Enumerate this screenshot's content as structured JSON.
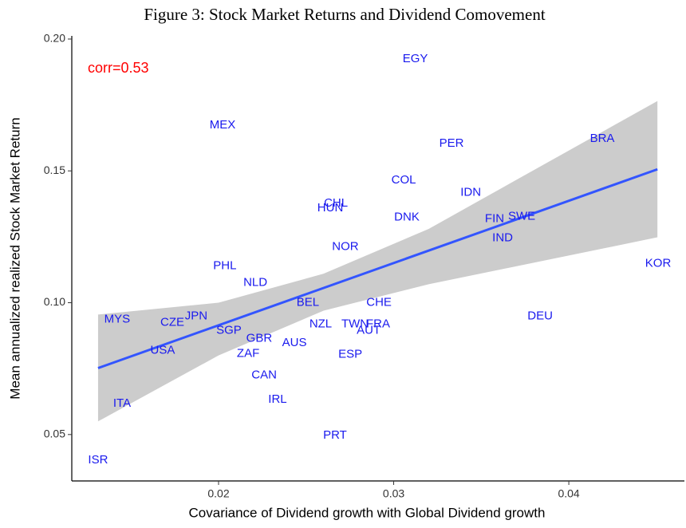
{
  "chart_data": {
    "type": "scatter",
    "title": "Figure 3: Stock Market Returns and Dividend Comovement",
    "x_label": "Covariance of Dividend growth with Global Dividend growth",
    "y_label": "Mean annualized realized Stock Market Return",
    "annotation": "corr=0.53",
    "annotation_color": "#ff0000",
    "color": "#1a1aee",
    "labels": [
      "EGY",
      "MEX",
      "BRA",
      "PER",
      "COL",
      "IDN",
      "CHL",
      "HUN",
      "DNK",
      "FIN",
      "SWE",
      "IND",
      "NOR",
      "KOR",
      "PHL",
      "NLD",
      "BEL",
      "CHE",
      "DEU",
      "MYS",
      "JPN",
      "CZE",
      "NZL",
      "TWN",
      "FRA",
      "AUT",
      "SGP",
      "GBR",
      "AUS",
      "USA",
      "ZAF",
      "ESP",
      "CAN",
      "IRL",
      "ITA",
      "PRT",
      "ISR"
    ],
    "x": [
      0.03123,
      0.02023,
      0.04191,
      0.0333,
      0.03057,
      0.0344,
      0.0267,
      0.02638,
      0.03075,
      0.03576,
      0.03731,
      0.03622,
      0.02724,
      0.0451,
      0.02036,
      0.0221,
      0.0251,
      0.02916,
      0.03836,
      0.01421,
      0.01872,
      0.01736,
      0.02583,
      0.02779,
      0.02911,
      0.02857,
      0.02059,
      0.02232,
      0.02433,
      0.01681,
      0.02169,
      0.02752,
      0.0226,
      0.02337,
      0.01449,
      0.02665,
      0.01312
    ],
    "values": [
      0.1924,
      0.1673,
      0.1621,
      0.1603,
      0.1464,
      0.1418,
      0.1376,
      0.1358,
      0.1324,
      0.1318,
      0.1327,
      0.1245,
      0.1212,
      0.1148,
      0.1139,
      0.1076,
      0.1,
      0.1,
      0.0948,
      0.0936,
      0.0948,
      0.0924,
      0.0918,
      0.0918,
      0.0918,
      0.0894,
      0.0894,
      0.0864,
      0.0848,
      0.0818,
      0.0806,
      0.0803,
      0.0724,
      0.0633,
      0.0618,
      0.0497,
      0.0403
    ],
    "fit": {
      "x": [
        0.01312,
        0.04506
      ],
      "values": [
        0.0752,
        0.1506
      ],
      "color": "#3355ff"
    },
    "band": {
      "x": [
        0.01312,
        0.02,
        0.026,
        0.032,
        0.04506
      ],
      "upper": [
        0.0955,
        0.1,
        0.111,
        0.128,
        0.1765
      ],
      "lower": [
        0.055,
        0.08,
        0.097,
        0.107,
        0.1248
      ],
      "color": "#cccccc"
    },
    "xlim": [
      0.01162,
      0.0466
    ],
    "ylim": [
      0.0324,
      0.2012
    ],
    "xticks": [
      0.02,
      0.03,
      0.04
    ],
    "yticks": [
      {
        "value": 0.05,
        "label": "0.05"
      },
      {
        "value": 0.1,
        "label": "0.10"
      },
      {
        "value": 0.15,
        "label": "0.15"
      },
      {
        "value": 0.2,
        "label": "0.20"
      }
    ],
    "grid": false
  }
}
